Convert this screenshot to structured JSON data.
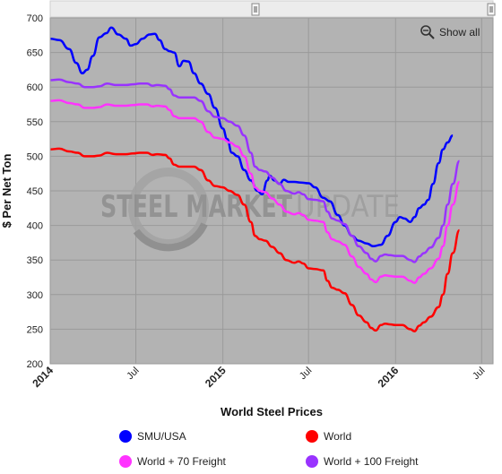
{
  "chart_data": {
    "type": "line",
    "title": "",
    "xlabel": "World Steel Prices",
    "ylabel": "$ Per Net Ton",
    "ylim": [
      200,
      700
    ],
    "yticks": [
      200,
      250,
      300,
      350,
      400,
      450,
      500,
      550,
      600,
      650,
      700
    ],
    "xlim": [
      "2014-01-01",
      "2016-07-25"
    ],
    "xticks": [
      {
        "date": "2014-01-01",
        "label": "2014",
        "bold": true
      },
      {
        "date": "2014-07-01",
        "label": "Jul",
        "bold": false
      },
      {
        "date": "2015-01-01",
        "label": "2015",
        "bold": true
      },
      {
        "date": "2015-07-01",
        "label": "Jul",
        "bold": false
      },
      {
        "date": "2016-01-01",
        "label": "2016",
        "bold": true
      },
      {
        "date": "2016-07-01",
        "label": "Jul",
        "bold": false
      }
    ],
    "grid": true,
    "legend_position": "bottom",
    "show_all_label": "Show all",
    "watermark": "STEEL MARKET UPDATE",
    "series": [
      {
        "name": "SMU/USA",
        "color": "#0000ff",
        "points": [
          [
            "2014-01-01",
            670
          ],
          [
            "2014-01-20",
            668
          ],
          [
            "2014-02-10",
            655
          ],
          [
            "2014-02-25",
            635
          ],
          [
            "2014-03-10",
            620
          ],
          [
            "2014-03-20",
            625
          ],
          [
            "2014-04-01",
            645
          ],
          [
            "2014-04-15",
            672
          ],
          [
            "2014-04-30",
            678
          ],
          [
            "2014-05-10",
            686
          ],
          [
            "2014-05-25",
            676
          ],
          [
            "2014-06-10",
            670
          ],
          [
            "2014-06-20",
            660
          ],
          [
            "2014-07-01",
            662
          ],
          [
            "2014-07-15",
            670
          ],
          [
            "2014-07-30",
            676
          ],
          [
            "2014-08-10",
            677
          ],
          [
            "2014-08-20",
            668
          ],
          [
            "2014-09-01",
            655
          ],
          [
            "2014-09-10",
            652
          ],
          [
            "2014-09-20",
            650
          ],
          [
            "2014-10-01",
            630
          ],
          [
            "2014-10-10",
            638
          ],
          [
            "2014-10-20",
            637
          ],
          [
            "2014-11-01",
            620
          ],
          [
            "2014-11-15",
            605
          ],
          [
            "2014-12-01",
            590
          ],
          [
            "2014-12-15",
            570
          ],
          [
            "2015-01-01",
            540
          ],
          [
            "2015-01-10",
            525
          ],
          [
            "2015-01-20",
            505
          ],
          [
            "2015-02-01",
            500
          ],
          [
            "2015-02-15",
            480
          ],
          [
            "2015-03-01",
            465
          ],
          [
            "2015-03-15",
            450
          ],
          [
            "2015-03-25",
            445
          ],
          [
            "2015-04-05",
            465
          ],
          [
            "2015-04-10",
            472
          ],
          [
            "2015-04-20",
            465
          ],
          [
            "2015-05-01",
            460
          ],
          [
            "2015-05-10",
            466
          ],
          [
            "2015-05-20",
            463
          ],
          [
            "2015-06-01",
            463
          ],
          [
            "2015-06-15",
            462
          ],
          [
            "2015-07-01",
            461
          ],
          [
            "2015-07-15",
            455
          ],
          [
            "2015-08-01",
            440
          ],
          [
            "2015-08-15",
            435
          ],
          [
            "2015-09-01",
            415
          ],
          [
            "2015-09-15",
            400
          ],
          [
            "2015-10-01",
            385
          ],
          [
            "2015-10-15",
            378
          ],
          [
            "2015-11-01",
            374
          ],
          [
            "2015-11-15",
            370
          ],
          [
            "2015-12-01",
            372
          ],
          [
            "2015-12-15",
            385
          ],
          [
            "2016-01-01",
            405
          ],
          [
            "2016-01-10",
            412
          ],
          [
            "2016-01-20",
            410
          ],
          [
            "2016-02-01",
            405
          ],
          [
            "2016-02-10",
            412
          ],
          [
            "2016-02-20",
            425
          ],
          [
            "2016-03-01",
            430
          ],
          [
            "2016-03-10",
            437
          ],
          [
            "2016-03-20",
            460
          ],
          [
            "2016-04-01",
            490
          ],
          [
            "2016-04-10",
            510
          ],
          [
            "2016-04-20",
            520
          ],
          [
            "2016-05-01",
            530
          ]
        ]
      },
      {
        "name": "World",
        "color": "#ff0000",
        "points": [
          [
            "2014-01-01",
            510
          ],
          [
            "2014-01-20",
            511
          ],
          [
            "2014-02-10",
            507
          ],
          [
            "2014-02-28",
            505
          ],
          [
            "2014-03-15",
            500
          ],
          [
            "2014-04-01",
            500
          ],
          [
            "2014-04-15",
            501
          ],
          [
            "2014-05-01",
            505
          ],
          [
            "2014-05-20",
            503
          ],
          [
            "2014-06-10",
            503
          ],
          [
            "2014-06-25",
            504
          ],
          [
            "2014-07-10",
            505
          ],
          [
            "2014-07-25",
            505
          ],
          [
            "2014-08-05",
            502
          ],
          [
            "2014-08-15",
            503
          ],
          [
            "2014-09-01",
            502
          ],
          [
            "2014-09-10",
            497
          ],
          [
            "2014-09-20",
            488
          ],
          [
            "2014-10-01",
            485
          ],
          [
            "2014-10-20",
            485
          ],
          [
            "2014-11-01",
            485
          ],
          [
            "2014-11-15",
            480
          ],
          [
            "2014-12-01",
            465
          ],
          [
            "2014-12-15",
            457
          ],
          [
            "2015-01-01",
            455
          ],
          [
            "2015-01-15",
            450
          ],
          [
            "2015-02-01",
            444
          ],
          [
            "2015-02-15",
            430
          ],
          [
            "2015-03-01",
            405
          ],
          [
            "2015-03-10",
            385
          ],
          [
            "2015-03-20",
            380
          ],
          [
            "2015-04-01",
            378
          ],
          [
            "2015-04-15",
            369
          ],
          [
            "2015-05-01",
            360
          ],
          [
            "2015-05-15",
            350
          ],
          [
            "2015-06-01",
            346
          ],
          [
            "2015-06-10",
            348
          ],
          [
            "2015-06-20",
            345
          ],
          [
            "2015-07-01",
            338
          ],
          [
            "2015-07-15",
            337
          ],
          [
            "2015-08-01",
            335
          ],
          [
            "2015-08-10",
            320
          ],
          [
            "2015-08-20",
            310
          ],
          [
            "2015-09-01",
            307
          ],
          [
            "2015-09-15",
            302
          ],
          [
            "2015-10-01",
            285
          ],
          [
            "2015-10-15",
            270
          ],
          [
            "2015-11-01",
            260
          ],
          [
            "2015-11-10",
            252
          ],
          [
            "2015-11-20",
            248
          ],
          [
            "2015-12-01",
            256
          ],
          [
            "2015-12-10",
            258
          ],
          [
            "2015-12-20",
            257
          ],
          [
            "2016-01-01",
            256
          ],
          [
            "2016-01-15",
            256
          ],
          [
            "2016-02-01",
            250
          ],
          [
            "2016-02-10",
            247
          ],
          [
            "2016-02-20",
            255
          ],
          [
            "2016-03-01",
            260
          ],
          [
            "2016-03-15",
            268
          ],
          [
            "2016-04-01",
            282
          ],
          [
            "2016-04-10",
            300
          ],
          [
            "2016-04-20",
            330
          ],
          [
            "2016-05-01",
            360
          ],
          [
            "2016-05-15",
            393
          ]
        ]
      },
      {
        "name": "World + 70 Freight",
        "color": "#ff33ff",
        "points": [
          [
            "2014-01-01",
            580
          ],
          [
            "2014-01-20",
            581
          ],
          [
            "2014-02-10",
            577
          ],
          [
            "2014-02-28",
            575
          ],
          [
            "2014-03-15",
            570
          ],
          [
            "2014-04-01",
            570
          ],
          [
            "2014-04-15",
            571
          ],
          [
            "2014-05-01",
            575
          ],
          [
            "2014-05-20",
            573
          ],
          [
            "2014-06-10",
            573
          ],
          [
            "2014-06-25",
            574
          ],
          [
            "2014-07-10",
            575
          ],
          [
            "2014-07-25",
            575
          ],
          [
            "2014-08-05",
            572
          ],
          [
            "2014-08-15",
            573
          ],
          [
            "2014-09-01",
            572
          ],
          [
            "2014-09-10",
            567
          ],
          [
            "2014-09-20",
            558
          ],
          [
            "2014-10-01",
            555
          ],
          [
            "2014-10-20",
            555
          ],
          [
            "2014-11-01",
            555
          ],
          [
            "2014-11-15",
            550
          ],
          [
            "2014-12-01",
            535
          ],
          [
            "2014-12-15",
            527
          ],
          [
            "2015-01-01",
            525
          ],
          [
            "2015-01-15",
            520
          ],
          [
            "2015-02-01",
            514
          ],
          [
            "2015-02-15",
            500
          ],
          [
            "2015-03-01",
            475
          ],
          [
            "2015-03-10",
            455
          ],
          [
            "2015-03-20",
            450
          ],
          [
            "2015-04-01",
            448
          ],
          [
            "2015-04-15",
            439
          ],
          [
            "2015-05-01",
            430
          ],
          [
            "2015-05-15",
            420
          ],
          [
            "2015-06-01",
            416
          ],
          [
            "2015-06-10",
            418
          ],
          [
            "2015-06-20",
            415
          ],
          [
            "2015-07-01",
            408
          ],
          [
            "2015-07-15",
            407
          ],
          [
            "2015-08-01",
            405
          ],
          [
            "2015-08-10",
            390
          ],
          [
            "2015-08-20",
            380
          ],
          [
            "2015-09-01",
            377
          ],
          [
            "2015-09-15",
            372
          ],
          [
            "2015-10-01",
            355
          ],
          [
            "2015-10-15",
            340
          ],
          [
            "2015-11-01",
            330
          ],
          [
            "2015-11-10",
            322
          ],
          [
            "2015-11-20",
            318
          ],
          [
            "2015-12-01",
            326
          ],
          [
            "2015-12-10",
            328
          ],
          [
            "2015-12-20",
            327
          ],
          [
            "2016-01-01",
            326
          ],
          [
            "2016-01-15",
            326
          ],
          [
            "2016-02-01",
            320
          ],
          [
            "2016-02-10",
            317
          ],
          [
            "2016-02-20",
            325
          ],
          [
            "2016-03-01",
            330
          ],
          [
            "2016-03-15",
            338
          ],
          [
            "2016-04-01",
            352
          ],
          [
            "2016-04-10",
            370
          ],
          [
            "2016-04-20",
            400
          ],
          [
            "2016-05-01",
            430
          ],
          [
            "2016-05-15",
            463
          ]
        ]
      },
      {
        "name": "World + 100 Freight",
        "color": "#9933ff",
        "points": [
          [
            "2014-01-01",
            610
          ],
          [
            "2014-01-20",
            611
          ],
          [
            "2014-02-10",
            607
          ],
          [
            "2014-02-28",
            605
          ],
          [
            "2014-03-15",
            600
          ],
          [
            "2014-04-01",
            600
          ],
          [
            "2014-04-15",
            601
          ],
          [
            "2014-05-01",
            605
          ],
          [
            "2014-05-20",
            603
          ],
          [
            "2014-06-10",
            603
          ],
          [
            "2014-06-25",
            604
          ],
          [
            "2014-07-10",
            605
          ],
          [
            "2014-07-25",
            605
          ],
          [
            "2014-08-05",
            602
          ],
          [
            "2014-08-15",
            603
          ],
          [
            "2014-09-01",
            602
          ],
          [
            "2014-09-10",
            597
          ],
          [
            "2014-09-20",
            588
          ],
          [
            "2014-10-01",
            585
          ],
          [
            "2014-10-20",
            585
          ],
          [
            "2014-11-01",
            585
          ],
          [
            "2014-11-15",
            580
          ],
          [
            "2014-12-01",
            565
          ],
          [
            "2014-12-15",
            557
          ],
          [
            "2015-01-01",
            555
          ],
          [
            "2015-01-15",
            550
          ],
          [
            "2015-02-01",
            544
          ],
          [
            "2015-02-15",
            530
          ],
          [
            "2015-03-01",
            505
          ],
          [
            "2015-03-10",
            485
          ],
          [
            "2015-03-20",
            480
          ],
          [
            "2015-04-01",
            478
          ],
          [
            "2015-04-15",
            469
          ],
          [
            "2015-05-01",
            460
          ],
          [
            "2015-05-15",
            450
          ],
          [
            "2015-06-01",
            446
          ],
          [
            "2015-06-10",
            448
          ],
          [
            "2015-06-20",
            445
          ],
          [
            "2015-07-01",
            438
          ],
          [
            "2015-07-15",
            437
          ],
          [
            "2015-08-01",
            435
          ],
          [
            "2015-08-10",
            420
          ],
          [
            "2015-08-20",
            410
          ],
          [
            "2015-09-01",
            407
          ],
          [
            "2015-09-15",
            402
          ],
          [
            "2015-10-01",
            385
          ],
          [
            "2015-10-15",
            370
          ],
          [
            "2015-11-01",
            360
          ],
          [
            "2015-11-10",
            352
          ],
          [
            "2015-11-20",
            348
          ],
          [
            "2015-12-01",
            356
          ],
          [
            "2015-12-10",
            358
          ],
          [
            "2015-12-20",
            357
          ],
          [
            "2016-01-01",
            356
          ],
          [
            "2016-01-15",
            356
          ],
          [
            "2016-02-01",
            350
          ],
          [
            "2016-02-10",
            347
          ],
          [
            "2016-02-20",
            355
          ],
          [
            "2016-03-01",
            360
          ],
          [
            "2016-03-15",
            368
          ],
          [
            "2016-04-01",
            382
          ],
          [
            "2016-04-10",
            400
          ],
          [
            "2016-04-20",
            430
          ],
          [
            "2016-05-01",
            460
          ],
          [
            "2016-05-15",
            493
          ]
        ]
      }
    ]
  }
}
